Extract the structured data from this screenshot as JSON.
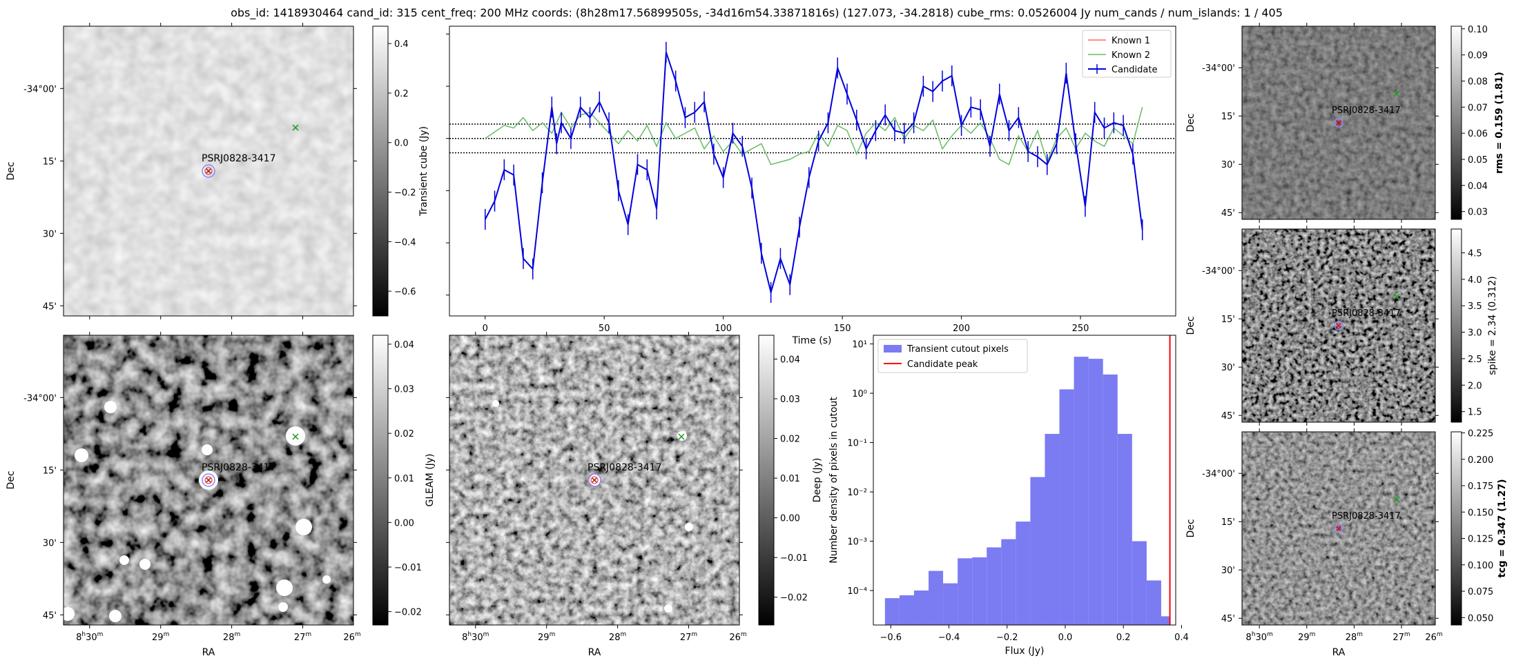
{
  "title": "obs_id: 1418930464 cand_id: 315 cent_freq: 200 MHz coords: (8h28m17.56899505s, -34d16m54.33871816s) (127.073, -34.2818) cube_rms: 0.0526004 Jy num_cands / num_islands: 1 / 405",
  "colors": {
    "candidate": "#0000dd",
    "known1": "#ff6666",
    "known2": "#66bb66",
    "hist": "#7b7bf2",
    "peak": "#ff0000",
    "source_label": "#228b22"
  },
  "sky_axes": {
    "dec_ticks": [
      "-34°00'",
      "15'",
      "30'",
      "45'"
    ],
    "ra_ticks": [
      {
        "h": "8",
        "sup_h": "h",
        "m": "30",
        "sup_m": "m"
      },
      {
        "m": "29",
        "sup_m": "m"
      },
      {
        "m": "28",
        "sup_m": "m"
      },
      {
        "m": "27",
        "sup_m": "m"
      },
      {
        "m": "26",
        "sup_m": "m"
      }
    ],
    "xlabel": "RA",
    "ylabel": "Dec",
    "source_label": "PSRJ0828-3417"
  },
  "panels": {
    "transient": {
      "cbar_label": "Transient cube (Jy)",
      "cbar_ticks": [
        "0.4",
        "0.2",
        "0.0",
        "−0.2",
        "−0.4",
        "−0.6"
      ],
      "cbar_range": [
        -0.7,
        0.47
      ]
    },
    "gleam": {
      "cbar_label": "GLEAM (Jy)",
      "cbar_ticks": [
        "0.04",
        "0.03",
        "0.02",
        "0.01",
        "0.00",
        "−0.01",
        "−0.02"
      ],
      "cbar_range": [
        -0.023,
        0.042
      ]
    },
    "deep": {
      "cbar_label": "Deep (Jy)",
      "cbar_ticks": [
        "0.04",
        "0.03",
        "0.02",
        "0.01",
        "0.00",
        "−0.01",
        "−0.02"
      ],
      "cbar_range": [
        -0.027,
        0.046
      ]
    },
    "rms": {
      "cbar_label": "rms = 0.159 (1.81)",
      "cbar_bold": true,
      "cbar_ticks": [
        "0.10",
        "0.09",
        "0.08",
        "0.07",
        "0.06",
        "0.05",
        "0.04",
        "0.03"
      ],
      "cbar_range": [
        0.027,
        0.101
      ]
    },
    "spike": {
      "cbar_label": "spike = 2.34 (0.312)",
      "cbar_bold": false,
      "cbar_ticks": [
        "4.5",
        "4.0",
        "3.5",
        "3.0",
        "2.5",
        "2.0",
        "1.5"
      ],
      "cbar_range": [
        1.3,
        4.95
      ]
    },
    "tcg": {
      "cbar_label": "tcg = 0.347 (1.27)",
      "cbar_bold": true,
      "cbar_ticks": [
        "0.225",
        "0.200",
        "0.175",
        "0.150",
        "0.125",
        "0.100",
        "0.075",
        "0.050"
      ],
      "cbar_range": [
        0.043,
        0.226
      ]
    }
  },
  "chart_data": [
    {
      "type": "line",
      "title": "",
      "xlabel": "Time (s)",
      "ylabel": "",
      "xlim": [
        -15,
        290
      ],
      "ylim": [
        -0.68,
        0.43
      ],
      "x_ticks": [
        "0",
        "50",
        "100",
        "150",
        "200",
        "250"
      ],
      "x_tick_values": [
        0,
        50,
        100,
        150,
        200,
        250
      ],
      "hlines": [
        0.055,
        0.0,
        -0.055
      ],
      "legend": [
        "Known 1",
        "Known 2",
        "Candidate"
      ],
      "legend_position": "top-right",
      "series": [
        {
          "name": "Candidate",
          "x": [
            0,
            4,
            8,
            12,
            16,
            20,
            24,
            28,
            30,
            32,
            36,
            40,
            44,
            48,
            52,
            56,
            60,
            64,
            68,
            72,
            76,
            80,
            84,
            88,
            92,
            96,
            100,
            104,
            108,
            112,
            116,
            120,
            124,
            128,
            132,
            136,
            140,
            144,
            148,
            152,
            156,
            160,
            164,
            168,
            172,
            176,
            180,
            184,
            188,
            192,
            196,
            200,
            204,
            208,
            212,
            216,
            220,
            224,
            228,
            232,
            236,
            240,
            244,
            248,
            252,
            256,
            260,
            264,
            268,
            272,
            276
          ],
          "values": [
            -0.31,
            -0.24,
            -0.12,
            -0.14,
            -0.46,
            -0.5,
            -0.17,
            0.12,
            -0.02,
            0.06,
            0.0,
            0.12,
            0.08,
            0.14,
            0.06,
            -0.2,
            -0.33,
            -0.1,
            -0.12,
            -0.27,
            0.33,
            0.22,
            0.08,
            0.1,
            0.14,
            -0.06,
            -0.15,
            0.02,
            -0.03,
            -0.19,
            -0.44,
            -0.59,
            -0.46,
            -0.56,
            -0.34,
            -0.15,
            -0.01,
            0.06,
            0.27,
            0.17,
            0.07,
            -0.04,
            0.03,
            0.09,
            0.03,
            0.02,
            0.06,
            0.2,
            0.18,
            0.22,
            0.24,
            0.05,
            0.12,
            0.11,
            -0.03,
            0.17,
            0.03,
            0.08,
            -0.05,
            -0.07,
            -0.1,
            -0.02,
            0.25,
            -0.02,
            -0.26,
            0.1,
            0.04,
            0.06,
            0.05,
            -0.06,
            -0.35
          ],
          "errors": [
            0.04,
            0.04,
            0.04,
            0.04,
            0.04,
            0.04,
            0.04,
            0.04,
            0.04,
            0.04,
            0.04,
            0.04,
            0.04,
            0.04,
            0.04,
            0.04,
            0.04,
            0.04,
            0.04,
            0.04,
            0.04,
            0.04,
            0.04,
            0.04,
            0.04,
            0.04,
            0.04,
            0.04,
            0.04,
            0.04,
            0.04,
            0.04,
            0.04,
            0.04,
            0.04,
            0.04,
            0.04,
            0.04,
            0.04,
            0.04,
            0.04,
            0.04,
            0.04,
            0.04,
            0.04,
            0.04,
            0.04,
            0.04,
            0.04,
            0.04,
            0.04,
            0.04,
            0.04,
            0.04,
            0.04,
            0.04,
            0.04,
            0.04,
            0.04,
            0.04,
            0.04,
            0.04,
            0.04,
            0.04,
            0.04,
            0.04,
            0.04,
            0.04,
            0.04,
            0.04,
            0.04
          ]
        },
        {
          "name": "Known 2",
          "x": [
            0,
            8,
            12,
            16,
            20,
            24,
            28,
            32,
            36,
            40,
            44,
            48,
            52,
            56,
            60,
            64,
            68,
            72,
            76,
            80,
            84,
            88,
            92,
            96,
            100,
            104,
            108,
            112,
            116,
            120,
            124,
            128,
            132,
            136,
            140,
            144,
            148,
            152,
            156,
            160,
            164,
            168,
            172,
            176,
            180,
            184,
            188,
            192,
            196,
            200,
            204,
            208,
            212,
            216,
            220,
            224,
            228,
            232,
            236,
            240,
            244,
            248,
            252,
            256,
            260,
            264,
            268,
            272,
            276
          ],
          "values": [
            0.0,
            0.05,
            0.04,
            0.08,
            0.03,
            0.06,
            0.02,
            0.1,
            0.04,
            0.09,
            0.1,
            0.06,
            0.02,
            -0.02,
            0.03,
            -0.01,
            0.05,
            -0.03,
            0.06,
            0.0,
            0.02,
            0.04,
            -0.04,
            0.01,
            -0.05,
            -0.01,
            -0.06,
            -0.04,
            -0.02,
            -0.1,
            -0.09,
            -0.08,
            -0.06,
            -0.05,
            0.02,
            -0.03,
            0.05,
            0.03,
            -0.06,
            0.02,
            0.06,
            0.03,
            0.08,
            0.0,
            0.05,
            0.03,
            0.07,
            -0.04,
            0.01,
            0.05,
            0.02,
            0.06,
            0.0,
            -0.08,
            -0.1,
            0.01,
            -0.05,
            0.03,
            -0.09,
            0.0,
            0.04,
            -0.04,
            0.02,
            -0.01,
            -0.03,
            0.04,
            0.01,
            -0.02,
            0.12
          ]
        }
      ]
    },
    {
      "type": "bar",
      "title": "",
      "xlabel": "Flux (Jy)",
      "ylabel": "Number density of pixels in cutout",
      "y_scale": "log",
      "ylim": [
        2e-05,
        15
      ],
      "xlim": [
        -0.66,
        0.38
      ],
      "x_ticks": [
        "−0.6",
        "−0.4",
        "−0.2",
        "0.0",
        "0.2",
        "0.4"
      ],
      "x_tick_values": [
        -0.6,
        -0.4,
        -0.2,
        0.0,
        0.2,
        0.4
      ],
      "y_ticks": [
        "10¹",
        "10⁰",
        "10⁻¹",
        "10⁻²",
        "10⁻³",
        "10⁻⁴"
      ],
      "y_tick_values": [
        10,
        1,
        0.1,
        0.01,
        0.001,
        0.0001
      ],
      "legend": [
        "Transient cutout pixels",
        "Candidate peak"
      ],
      "legend_position": "top-left",
      "bin_edges": [
        -0.62,
        -0.57,
        -0.52,
        -0.47,
        -0.42,
        -0.37,
        -0.32,
        -0.27,
        -0.22,
        -0.17,
        -0.12,
        -0.07,
        -0.02,
        0.03,
        0.08,
        0.13,
        0.18,
        0.23,
        0.28,
        0.33,
        0.36
      ],
      "values": [
        7e-05,
        8e-05,
        0.0001,
        0.00025,
        0.00014,
        0.00045,
        0.00047,
        0.00075,
        0.0011,
        0.0025,
        0.02,
        0.15,
        1.2,
        5.5,
        5.0,
        2.4,
        0.15,
        0.001,
        0.00016,
        3e-05
      ],
      "candidate_peak": 0.36
    }
  ]
}
